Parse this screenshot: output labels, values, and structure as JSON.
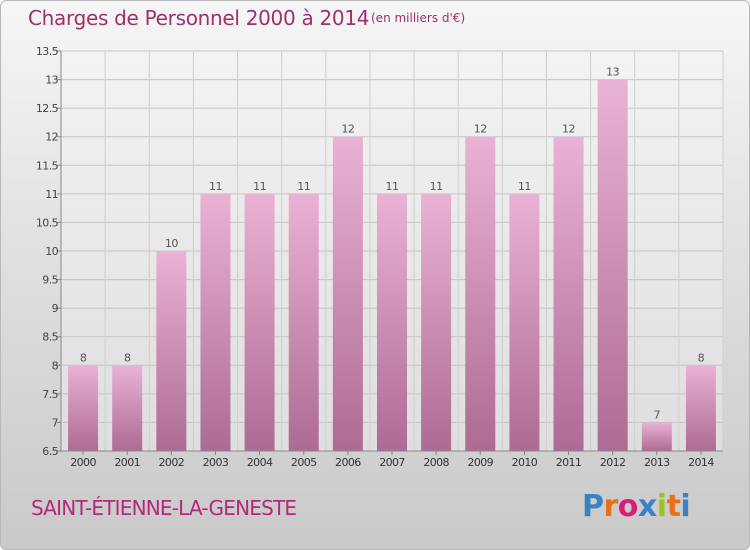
{
  "header": {
    "title": "Charges de Personnel 2000 à 2014",
    "units": "(en milliers d'€)"
  },
  "footer": {
    "commune": "SAINT-ÉTIENNE-LA-GENESTE",
    "logo_text": "Proxiti"
  },
  "colors": {
    "title": "#a0306a",
    "bar_top": "#eab2d4",
    "bar_bottom": "#ad6b93",
    "logo": [
      "#3b82c4",
      "#e8701a",
      "#d81e7a",
      "#3b82c4",
      "#9ac31c",
      "#e8701a",
      "#3b82c4"
    ]
  },
  "chart_data": {
    "type": "bar",
    "categories": [
      "2000",
      "2001",
      "2002",
      "2003",
      "2004",
      "2005",
      "2006",
      "2007",
      "2008",
      "2009",
      "2010",
      "2011",
      "2012",
      "2013",
      "2014"
    ],
    "values": [
      8,
      8,
      10,
      11,
      11,
      11,
      12,
      11,
      11,
      12,
      11,
      12,
      13,
      7,
      8
    ],
    "data_labels": [
      "8",
      "8",
      "10",
      "11",
      "11",
      "11",
      "12",
      "11",
      "11",
      "12",
      "11",
      "12",
      "13",
      "7",
      "8"
    ],
    "ylim": [
      6.5,
      13.5
    ],
    "yticks": [
      6.5,
      7,
      7.5,
      8,
      8.5,
      9,
      9.5,
      10,
      10.5,
      11,
      11.5,
      12,
      12.5,
      13,
      13.5
    ],
    "ytick_labels": [
      "6.5",
      "7",
      "7.5",
      "8",
      "8.5",
      "9",
      "9.5",
      "10",
      "10.5",
      "11",
      "11.5",
      "12",
      "12.5",
      "13",
      "13.5"
    ],
    "xlabel": "",
    "ylabel": "",
    "grid": true,
    "legend": "none"
  }
}
